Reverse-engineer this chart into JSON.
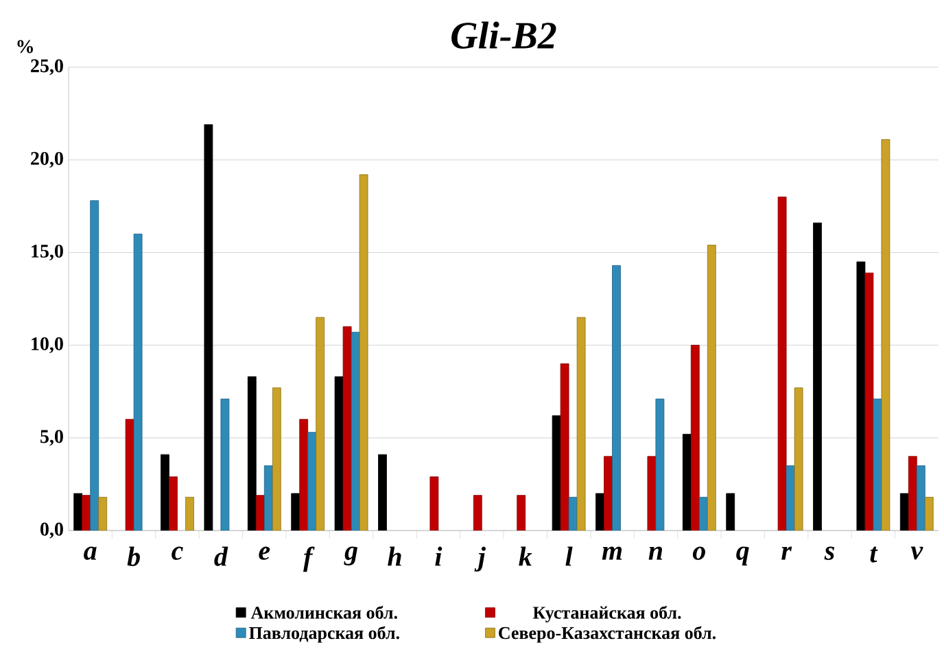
{
  "chart_data": {
    "type": "bar",
    "title": "Gli-B2",
    "ylabel": "%",
    "categories": [
      "a",
      "b",
      "c",
      "d",
      "e",
      "f",
      "g",
      "h",
      "i",
      "j",
      "k",
      "l",
      "m",
      "n",
      "o",
      "q",
      "r",
      "s",
      "t",
      "v"
    ],
    "series": [
      {
        "name": "Акмолинская обл.",
        "color": "#000000",
        "values": [
          2.0,
          null,
          4.1,
          21.9,
          8.3,
          2.0,
          8.3,
          4.1,
          null,
          null,
          null,
          6.2,
          2.0,
          null,
          5.2,
          2.0,
          null,
          16.6,
          14.5,
          2.0
        ]
      },
      {
        "name": "Кустанайская обл.",
        "color": "#c00000",
        "values": [
          1.9,
          6.0,
          2.9,
          null,
          1.9,
          6.0,
          11.0,
          null,
          2.9,
          1.9,
          1.9,
          9.0,
          4.0,
          4.0,
          10.0,
          null,
          18.0,
          null,
          13.9,
          4.0
        ]
      },
      {
        "name": "Павлодарская обл.",
        "color": "#2e8bb8",
        "values": [
          17.8,
          16.0,
          null,
          7.1,
          3.5,
          5.3,
          10.7,
          null,
          null,
          null,
          null,
          1.8,
          14.3,
          7.1,
          1.8,
          null,
          3.5,
          null,
          7.1,
          3.5
        ]
      },
      {
        "name": "Северо-Казахстанская обл.",
        "color": "#c9a227",
        "values": [
          1.8,
          null,
          1.8,
          null,
          7.7,
          11.5,
          19.2,
          null,
          null,
          null,
          null,
          11.5,
          null,
          null,
          15.4,
          null,
          7.7,
          null,
          21.1,
          1.8
        ]
      }
    ],
    "ylim": [
      0,
      25
    ],
    "yticks": [
      {
        "value": 0,
        "label": "0,0"
      },
      {
        "value": 5,
        "label": "5,0"
      },
      {
        "value": 10,
        "label": "10,0"
      },
      {
        "value": 15,
        "label": "15,0"
      },
      {
        "value": 20,
        "label": "20,0"
      },
      {
        "value": 25,
        "label": "25,0"
      }
    ],
    "grid": "y",
    "legend": "bottom"
  }
}
